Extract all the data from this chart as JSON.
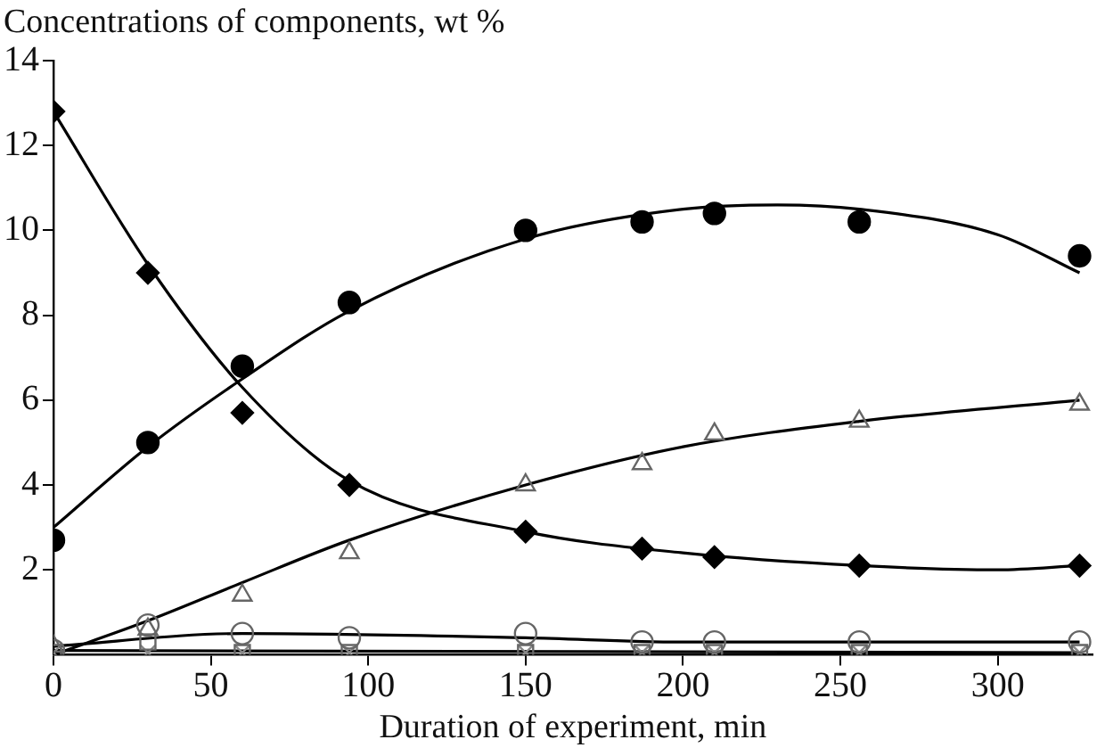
{
  "chart_data": {
    "type": "scatter",
    "xlabel": "Duration of experiment, min",
    "ylabel": "Concentrations of components, wt %",
    "xlim": [
      0,
      330
    ],
    "ylim": [
      0,
      14
    ],
    "xticks": [
      0,
      50,
      100,
      150,
      200,
      250,
      300
    ],
    "yticks": [
      2,
      4,
      6,
      8,
      10,
      12,
      14
    ],
    "grid": false,
    "legend": false,
    "series": [
      {
        "marker": "diamond",
        "color": "#000000",
        "x": [
          0,
          30,
          60,
          94,
          150,
          187,
          210,
          256,
          326
        ],
        "values": [
          12.8,
          9.0,
          5.7,
          4.0,
          2.9,
          2.5,
          2.3,
          2.1,
          2.1
        ]
      },
      {
        "marker": "circle",
        "color": "#000000",
        "x": [
          0,
          30,
          60,
          94,
          150,
          187,
          210,
          256,
          326
        ],
        "values": [
          2.7,
          5.0,
          6.8,
          8.3,
          10.0,
          10.2,
          10.4,
          10.2,
          9.4
        ]
      },
      {
        "marker": "triangle",
        "color": "#666666",
        "x": [
          0,
          30,
          60,
          94,
          150,
          187,
          210,
          256,
          326
        ],
        "values": [
          0.2,
          0.6,
          1.4,
          2.4,
          4.0,
          4.5,
          5.2,
          5.5,
          5.9
        ]
      },
      {
        "marker": "circle",
        "color": "#666666",
        "x": [
          0,
          30,
          60,
          94,
          150,
          187,
          210,
          256,
          326
        ],
        "values": [
          0.1,
          0.7,
          0.5,
          0.4,
          0.5,
          0.3,
          0.3,
          0.3,
          0.3
        ]
      },
      {
        "marker": "square",
        "color": "#666666",
        "x": [
          0,
          30,
          60,
          94,
          150,
          187,
          210,
          256,
          326
        ],
        "values": [
          0.05,
          0.3,
          0.05,
          0.05,
          0.05,
          0.05,
          0.05,
          0.05,
          0.05
        ]
      },
      {
        "marker": "cross",
        "color": "#888888",
        "x": [
          0,
          30,
          60,
          94,
          150,
          187,
          210,
          256,
          326
        ],
        "values": [
          0.05,
          0.05,
          0.05,
          0.05,
          0.05,
          0.05,
          0.05,
          0.05,
          0.05
        ]
      },
      {
        "type": "line",
        "marker": "none",
        "line_style": "solid",
        "color": "#000000",
        "x": [
          0,
          30,
          60,
          94,
          150,
          200,
          256,
          300,
          326
        ],
        "values": [
          12.8,
          9.2,
          6.3,
          4.1,
          2.9,
          2.4,
          2.1,
          2.0,
          2.1
        ]
      },
      {
        "type": "line",
        "marker": "none",
        "line_style": "solid",
        "color": "#000000",
        "x": [
          0,
          30,
          60,
          94,
          150,
          200,
          230,
          256,
          300,
          326
        ],
        "values": [
          3.0,
          4.9,
          6.5,
          8.1,
          9.8,
          10.5,
          10.6,
          10.5,
          9.9,
          9.0
        ]
      },
      {
        "type": "line",
        "marker": "none",
        "line_style": "solid",
        "color": "#000000",
        "x": [
          0,
          30,
          60,
          94,
          150,
          200,
          256,
          326
        ],
        "values": [
          0.0,
          0.8,
          1.7,
          2.7,
          4.0,
          4.9,
          5.5,
          6.0
        ]
      },
      {
        "type": "line",
        "marker": "none",
        "line_style": "solid",
        "color": "#000000",
        "x": [
          0,
          60,
          150,
          200,
          326
        ],
        "values": [
          0.2,
          0.5,
          0.4,
          0.3,
          0.3
        ]
      },
      {
        "type": "line",
        "marker": "none",
        "line_style": "solid",
        "color": "#000000",
        "x": [
          0,
          326
        ],
        "values": [
          0.1,
          0.05
        ]
      }
    ]
  }
}
